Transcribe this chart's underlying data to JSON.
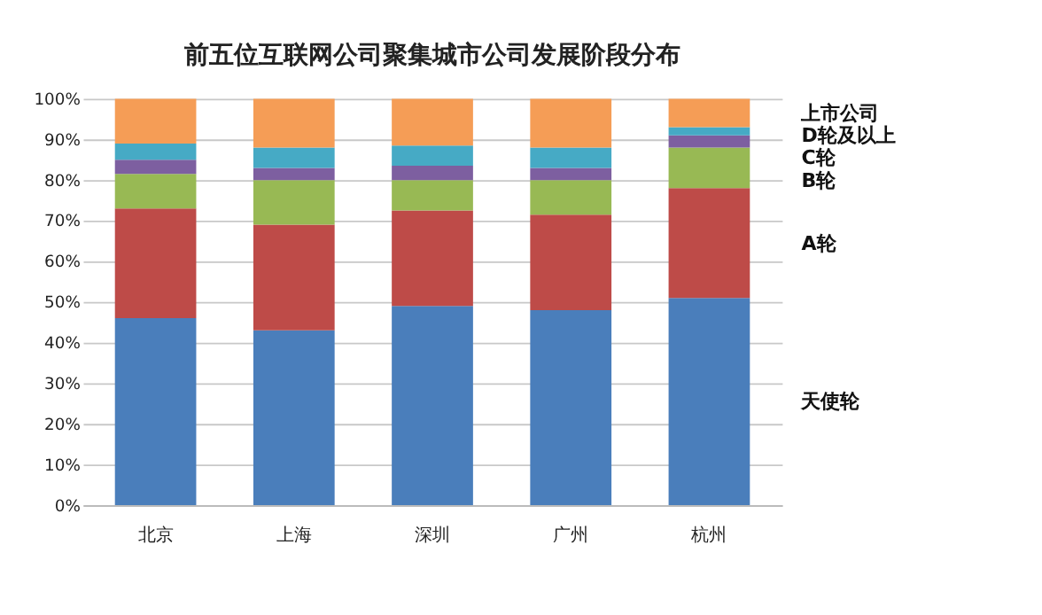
{
  "chart_data": {
    "type": "bar",
    "title": "前五位互联网公司聚集城市公司发展阶段分布",
    "categories": [
      "北京",
      "上海",
      "深圳",
      "广州",
      "杭州"
    ],
    "stacked": true,
    "series": [
      {
        "name": "天使轮",
        "color": "#4a7ebb",
        "values": [
          46,
          43,
          49,
          48,
          51
        ]
      },
      {
        "name": "A轮",
        "color": "#be4b48",
        "values": [
          27,
          26,
          23.5,
          23.5,
          27
        ]
      },
      {
        "name": "B轮",
        "color": "#98b954",
        "values": [
          8.5,
          11,
          7.5,
          8.5,
          10
        ]
      },
      {
        "name": "C轮",
        "color": "#7d5fa0",
        "values": [
          3.5,
          3,
          3.5,
          3,
          3
        ]
      },
      {
        "name": "D轮及以上",
        "color": "#46aac5",
        "values": [
          4,
          5,
          5,
          5,
          2
        ]
      },
      {
        "name": "上市公司",
        "color": "#f59d56",
        "values": [
          11,
          12,
          11.5,
          12,
          7
        ]
      }
    ],
    "ylim": [
      0,
      100
    ],
    "yticks": [
      {
        "value": 0,
        "label": "0%"
      },
      {
        "value": 10,
        "label": "10%"
      },
      {
        "value": 20,
        "label": "20%"
      },
      {
        "value": 30,
        "label": "30%"
      },
      {
        "value": 40,
        "label": "40%"
      },
      {
        "value": 50,
        "label": "50%"
      },
      {
        "value": 60,
        "label": "60%"
      },
      {
        "value": 70,
        "label": "70%"
      },
      {
        "value": 80,
        "label": "80%"
      },
      {
        "value": 90,
        "label": "90%"
      },
      {
        "value": 100,
        "label": "100%"
      }
    ],
    "grid": "y"
  }
}
